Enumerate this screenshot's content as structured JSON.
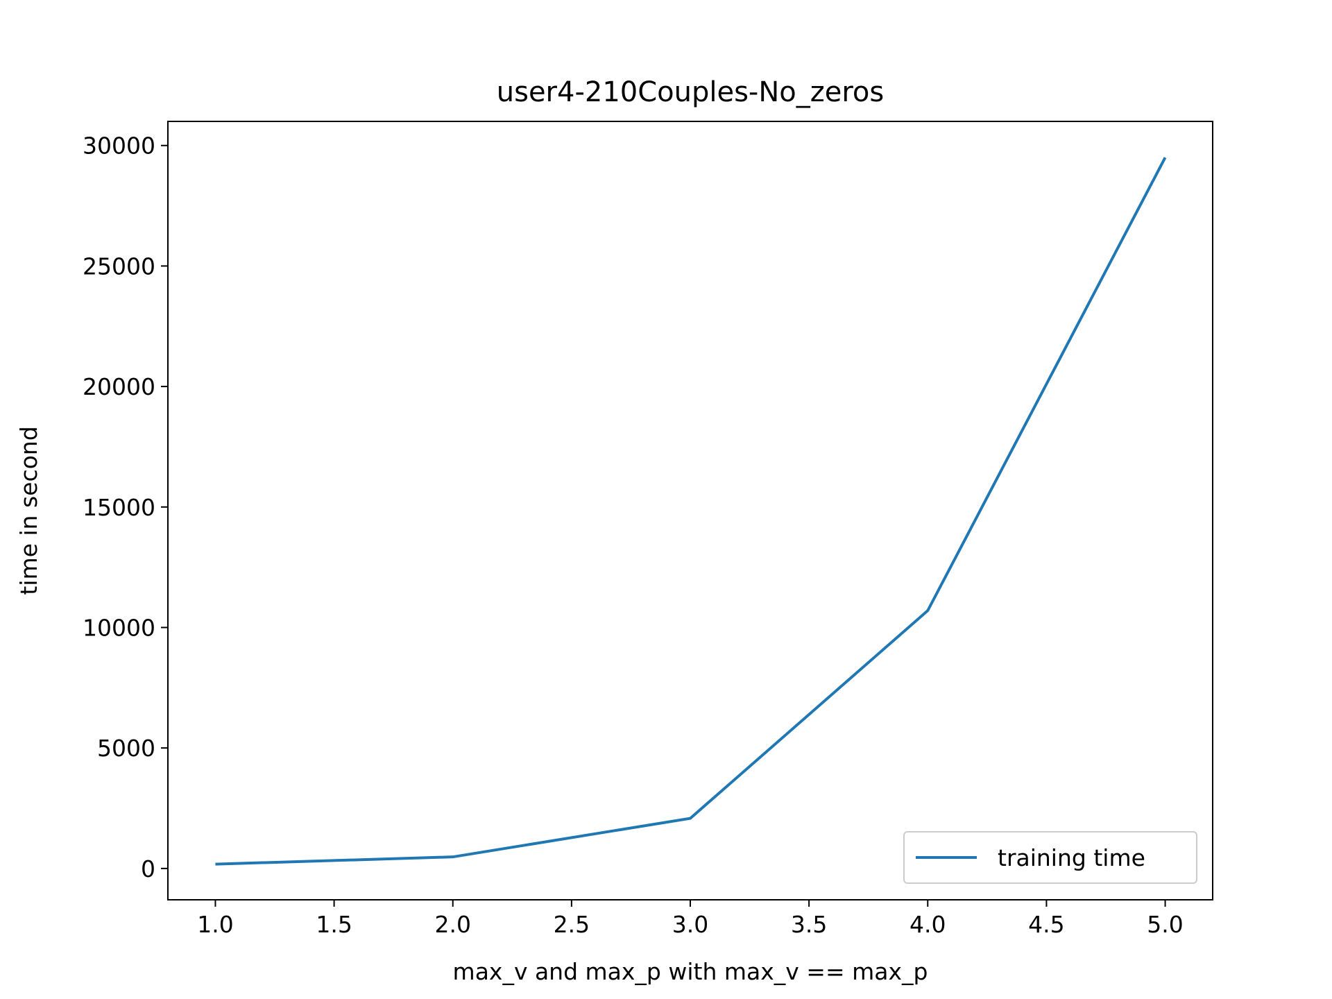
{
  "chart_data": {
    "type": "line",
    "title": "user4-210Couples-No_zeros",
    "xlabel": "max_v and max_p with max_v == max_p",
    "ylabel": "time in second",
    "x": [
      1.0,
      2.0,
      3.0,
      4.0,
      5.0
    ],
    "series": [
      {
        "name": "training time",
        "color": "#1f77b4",
        "values": [
          180,
          480,
          2080,
          10700,
          29500
        ]
      }
    ],
    "xlim": [
      0.8,
      5.2
    ],
    "ylim": [
      -1300,
      31000
    ],
    "xticks": [
      1.0,
      1.5,
      2.0,
      2.5,
      3.0,
      3.5,
      4.0,
      4.5,
      5.0
    ],
    "xtick_labels": [
      "1.0",
      "1.5",
      "2.0",
      "2.5",
      "3.0",
      "3.5",
      "4.0",
      "4.5",
      "5.0"
    ],
    "yticks": [
      0,
      5000,
      10000,
      15000,
      20000,
      25000,
      30000
    ],
    "ytick_labels": [
      "0",
      "5000",
      "10000",
      "15000",
      "20000",
      "25000",
      "30000"
    ],
    "grid": false,
    "legend_position": "lower-right"
  }
}
